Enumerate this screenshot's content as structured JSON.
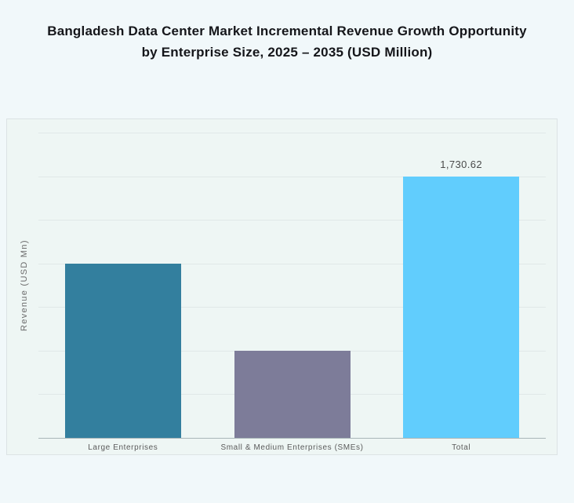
{
  "page": {
    "background": "#f1f8fa",
    "panel_background": "#eef6f4",
    "panel_border": "#dce3e4",
    "gridline_color": "#e0e8e8",
    "axis_line_color": "#a9b6b9"
  },
  "chart_data": {
    "type": "bar",
    "title": "Bangladesh Data Center Market Incremental Revenue Growth Opportunity by Enterprise Size, 2025 – 2035 (USD Million)",
    "title_lines": [
      "Bangladesh Data Center Market Incremental Revenue Growth Opportunity",
      "by Enterprise Size, 2025 – 2035 (USD Million)"
    ],
    "ylabel": "Revenue (USD Mn)",
    "xlabel": "",
    "categories": [
      "Large Enterprises",
      "Small & Medium Enterprises (SMEs)",
      "Total"
    ],
    "values": [
      1153.75,
      576.87,
      1730.62
    ],
    "data_labels": [
      "",
      "",
      "1,730.62"
    ],
    "bar_colors": [
      "#337f9e",
      "#7d7c99",
      "#61cdfd"
    ],
    "ylim": [
      0,
      2019
    ],
    "gridline_count": 8,
    "grid": true,
    "legend": "none"
  }
}
